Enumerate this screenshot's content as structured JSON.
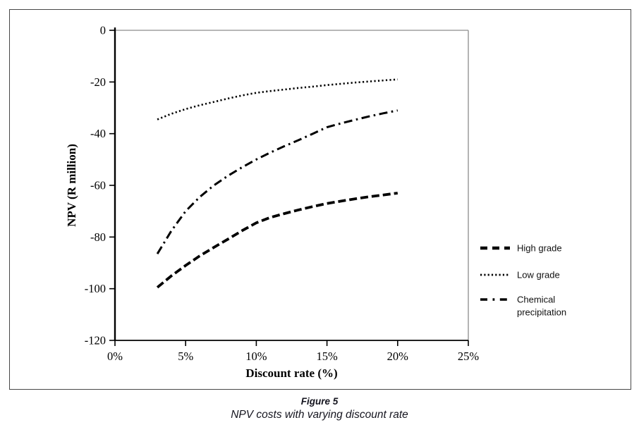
{
  "figure": {
    "caption_title": "Figure 5",
    "caption_subtitle": "NPV costs with varying discount rate"
  },
  "colors": {
    "axis": "#000000",
    "plot_border": "#8c8c8c",
    "outer_border": "#474747",
    "text": "#000000",
    "legend_text": "#101010",
    "series": "#000000"
  },
  "chart_data": {
    "type": "line",
    "title": "",
    "xlabel": "Discount rate (%)",
    "ylabel": "NPV (R million)",
    "xlim": [
      0,
      25
    ],
    "ylim": [
      -120,
      0
    ],
    "grid": false,
    "legend_position": "right-inside",
    "x_ticks": [
      "0%",
      "5%",
      "10%",
      "15%",
      "20%",
      "25%"
    ],
    "x_tick_values": [
      0,
      5,
      10,
      15,
      20,
      25
    ],
    "y_ticks": [
      0,
      -20,
      -40,
      -60,
      -80,
      -100,
      -120
    ],
    "x": [
      3,
      4,
      5,
      6,
      7,
      8,
      9,
      10,
      11,
      12,
      13,
      14,
      15,
      16,
      17,
      18,
      19,
      20
    ],
    "series": [
      {
        "name": "High grade",
        "style": "dashed",
        "color": "#000000",
        "values": [
          -99.5,
          -95.0,
          -91.0,
          -87.3,
          -84.0,
          -80.8,
          -77.5,
          -74.5,
          -72.4,
          -70.9,
          -69.5,
          -68.2,
          -67.0,
          -66.1,
          -65.2,
          -64.4,
          -63.7,
          -63.0
        ]
      },
      {
        "name": "Low grade",
        "style": "dotted",
        "color": "#000000",
        "values": [
          -34.5,
          -32.3,
          -30.5,
          -29.0,
          -27.7,
          -26.4,
          -25.2,
          -24.2,
          -23.5,
          -22.9,
          -22.3,
          -21.8,
          -21.2,
          -20.7,
          -20.2,
          -19.8,
          -19.4,
          -19.0
        ]
      },
      {
        "name": "Chemical precipitation",
        "style": "dash-dot",
        "color": "#000000",
        "values": [
          -86.5,
          -77.5,
          -70.0,
          -64.5,
          -60.0,
          -56.3,
          -53.0,
          -50.0,
          -47.3,
          -44.8,
          -42.5,
          -40.0,
          -37.5,
          -36.0,
          -34.6,
          -33.3,
          -32.1,
          -31.0
        ]
      }
    ]
  }
}
